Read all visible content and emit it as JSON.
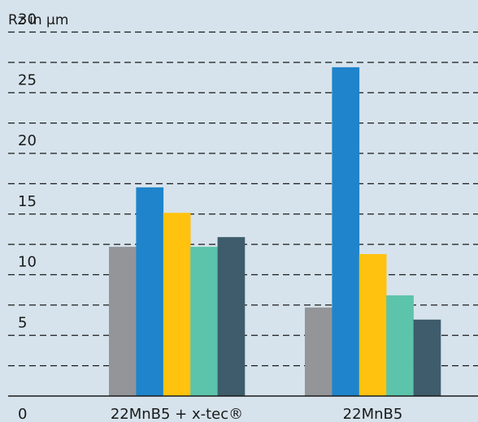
{
  "chart_data": {
    "type": "bar",
    "ylabel": "Rz in µm",
    "categories": [
      "22MnB5 + x-tec®",
      "22MnB5"
    ],
    "series": [
      {
        "color": "#939598",
        "values": [
          12.3,
          7.3
        ]
      },
      {
        "color": "#1f84cb",
        "values": [
          17.2,
          27.1
        ]
      },
      {
        "color": "#ffc20e",
        "values": [
          15.1,
          11.7
        ]
      },
      {
        "color": "#5cc4ab",
        "values": [
          12.3,
          8.3
        ]
      },
      {
        "color": "#3e5c6b",
        "values": [
          13.1,
          6.3
        ]
      }
    ],
    "ylim": [
      0,
      31
    ],
    "yticks": [
      0,
      5,
      10,
      15,
      20,
      25,
      30
    ],
    "grid": true
  },
  "colors": {
    "background": "#d6e3ec",
    "grid": "#1a1a1a",
    "axis": "#1a1a1a"
  }
}
